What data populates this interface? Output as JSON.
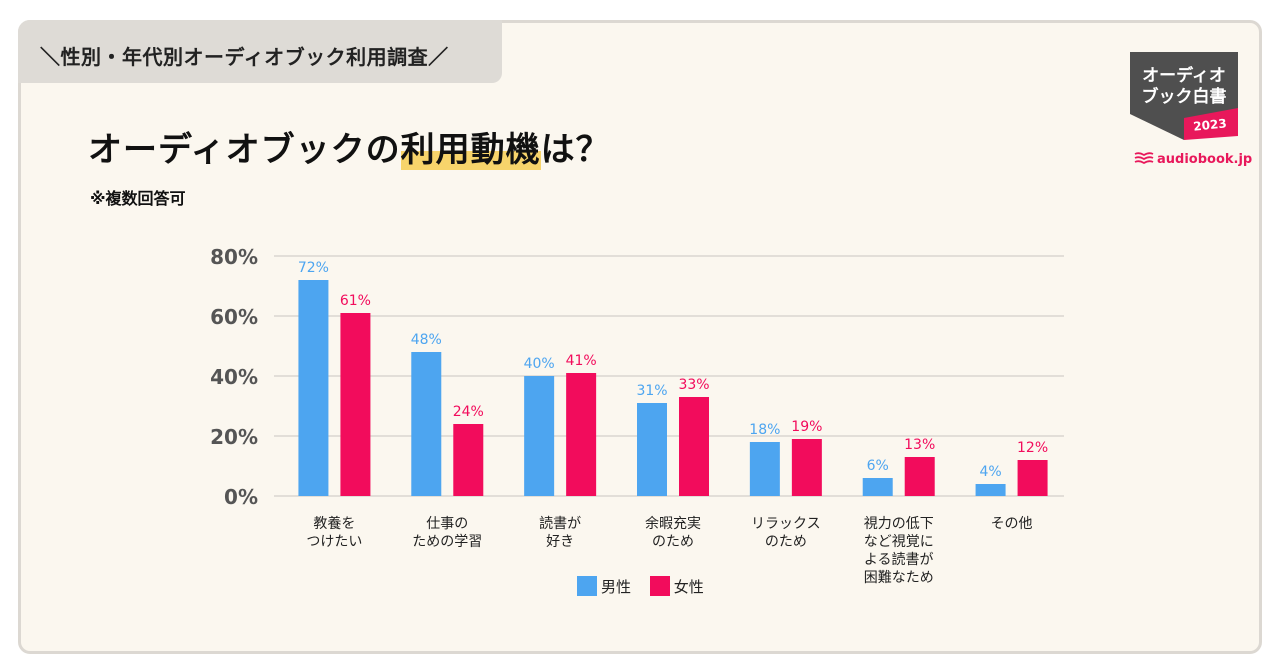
{
  "header": {
    "tab_label": "＼性別・年代別オーディオブック利用調査／",
    "title_pre": "オーディオブックの",
    "title_highlight": "利用動機",
    "title_post": "は？",
    "note": "※複数回答可"
  },
  "badge": {
    "line1": "オーディオ",
    "line2": "ブック白書",
    "year": "2023",
    "brand": "audiobook.jp"
  },
  "colors": {
    "male": "#4da5f0",
    "female": "#f20c5c",
    "accent": "#f7d46b"
  },
  "chart_data": {
    "type": "bar",
    "title": "オーディオブックの利用動機は？",
    "categories": [
      [
        "教養を",
        "つけたい"
      ],
      [
        "仕事の",
        "ための学習"
      ],
      [
        "読書が",
        "好き"
      ],
      [
        "余暇充実",
        "のため"
      ],
      [
        "リラックス",
        "のため"
      ],
      [
        "視力の低下",
        "など視覚に",
        "よる読書が",
        "困難なため"
      ],
      [
        "その他"
      ]
    ],
    "series": [
      {
        "name": "男性",
        "values": [
          72,
          48,
          40,
          31,
          18,
          6,
          4
        ],
        "labels": [
          "72%",
          "48%",
          "40%",
          "31%",
          "18%",
          "6%",
          "4%"
        ]
      },
      {
        "name": "女性",
        "values": [
          61,
          24,
          41,
          33,
          19,
          13,
          12
        ],
        "labels": [
          "61%",
          "24%",
          "41%",
          "33%",
          "19%",
          "13%",
          "12%"
        ]
      }
    ],
    "yticks": [
      "0%",
      "20%",
      "40%",
      "60%",
      "80%"
    ],
    "ylim": [
      0,
      80
    ],
    "legend_position": "bottom"
  }
}
